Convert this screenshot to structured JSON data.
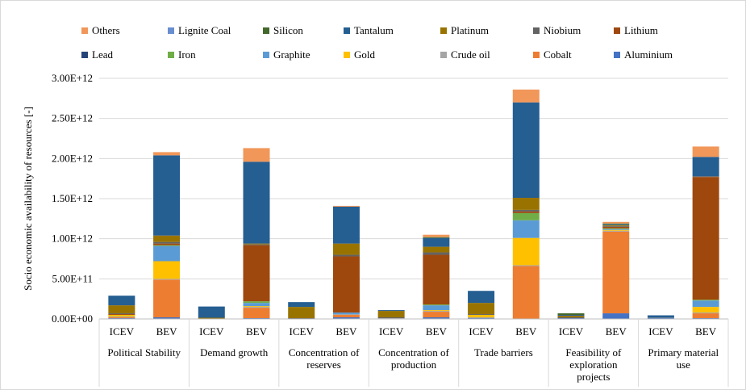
{
  "chart_data": {
    "type": "bar",
    "stacked": true,
    "ylabel": "Socio economic availability of resources [-]",
    "ylim": [
      0,
      3000000000000.0
    ],
    "yticks": [
      "0.00E+00",
      "5.00E+11",
      "1.00E+12",
      "1.50E+12",
      "2.00E+12",
      "2.50E+12",
      "3.00E+12"
    ],
    "grid": true,
    "legend_position": "top",
    "groups": [
      "Political Stability",
      "Demand growth",
      "Concentration of reserves",
      "Concentration of production",
      "Trade barriers",
      "Feasibility of exploration projects",
      "Primary material use"
    ],
    "subcategories": [
      "ICEV",
      "BEV"
    ],
    "legend_order": [
      "Others",
      "Lignite Coal",
      "Silicon",
      "Tantalum",
      "Platinum",
      "Niobium",
      "Lithium",
      "Lead",
      "Iron",
      "Graphite",
      "Gold",
      "Crude oil",
      "Cobalt",
      "Aluminium"
    ],
    "series": [
      {
        "name": "Aluminium",
        "color": "#4472c4",
        "values": [
          [
            10000000000.0,
            20000000000.0
          ],
          [
            0,
            10000000000.0
          ],
          [
            0,
            20000000000.0
          ],
          [
            0,
            20000000000.0
          ],
          [
            10000000000.0,
            0
          ],
          [
            10000000000.0,
            70000000000.0
          ],
          [
            10000000000.0,
            10000000000.0
          ]
        ]
      },
      {
        "name": "Cobalt",
        "color": "#ed7d31",
        "values": [
          [
            10000000000.0,
            470000000000.0
          ],
          [
            0,
            130000000000.0
          ],
          [
            0,
            30000000000.0
          ],
          [
            0,
            70000000000.0
          ],
          [
            0,
            660000000000.0
          ],
          [
            0,
            1020000000000.0
          ],
          [
            0,
            60000000000.0
          ]
        ]
      },
      {
        "name": "Crude oil",
        "color": "#a5a5a5",
        "values": [
          [
            10000000000.0,
            10000000000.0
          ],
          [
            5000000000.0,
            10000000000.0
          ],
          [
            0,
            10000000000.0
          ],
          [
            10000000000.0,
            10000000000.0
          ],
          [
            10000000000.0,
            10000000000.0
          ],
          [
            0,
            10000000000.0
          ],
          [
            5000000000.0,
            10000000000.0
          ]
        ]
      },
      {
        "name": "Gold",
        "color": "#ffc000",
        "values": [
          [
            20000000000.0,
            220000000000.0
          ],
          [
            0,
            10000000000.0
          ],
          [
            0,
            0
          ],
          [
            0,
            10000000000.0
          ],
          [
            30000000000.0,
            340000000000.0
          ],
          [
            0,
            10000000000.0
          ],
          [
            0,
            70000000000.0
          ]
        ]
      },
      {
        "name": "Graphite",
        "color": "#5b9bd5",
        "values": [
          [
            0,
            190000000000.0
          ],
          [
            0,
            40000000000.0
          ],
          [
            0,
            20000000000.0
          ],
          [
            0,
            60000000000.0
          ],
          [
            0,
            220000000000.0
          ],
          [
            0,
            10000000000.0
          ],
          [
            0,
            80000000000.0
          ]
        ]
      },
      {
        "name": "Iron",
        "color": "#70ad47",
        "values": [
          [
            0,
            10000000000.0
          ],
          [
            0,
            20000000000.0
          ],
          [
            0,
            0
          ],
          [
            0,
            10000000000.0
          ],
          [
            0,
            90000000000.0
          ],
          [
            0,
            10000000000.0
          ],
          [
            0,
            10000000000.0
          ]
        ]
      },
      {
        "name": "Lead",
        "color": "#264478",
        "values": [
          [
            0,
            0
          ],
          [
            0,
            0
          ],
          [
            0,
            0
          ],
          [
            0,
            0
          ],
          [
            0,
            0
          ],
          [
            0,
            0
          ],
          [
            0,
            0
          ]
        ]
      },
      {
        "name": "Lithium",
        "color": "#9e480e",
        "values": [
          [
            10000000000.0,
            20000000000.0
          ],
          [
            0,
            700000000000.0
          ],
          [
            0,
            700000000000.0
          ],
          [
            0,
            620000000000.0
          ],
          [
            0,
            20000000000.0
          ],
          [
            0,
            20000000000.0
          ],
          [
            0,
            1530000000000.0
          ]
        ]
      },
      {
        "name": "Niobium",
        "color": "#636363",
        "values": [
          [
            10000000000.0,
            20000000000.0
          ],
          [
            0,
            10000000000.0
          ],
          [
            10000000000.0,
            20000000000.0
          ],
          [
            10000000000.0,
            30000000000.0
          ],
          [
            10000000000.0,
            20000000000.0
          ],
          [
            10000000000.0,
            10000000000.0
          ],
          [
            0,
            10000000000.0
          ]
        ]
      },
      {
        "name": "Platinum",
        "color": "#997300",
        "values": [
          [
            100000000000.0,
            80000000000.0
          ],
          [
            10000000000.0,
            10000000000.0
          ],
          [
            140000000000.0,
            140000000000.0
          ],
          [
            80000000000.0,
            70000000000.0
          ],
          [
            140000000000.0,
            150000000000.0
          ],
          [
            20000000000.0,
            10000000000.0
          ],
          [
            0,
            0
          ]
        ]
      },
      {
        "name": "Tantalum",
        "color": "#255e91",
        "values": [
          [
            120000000000.0,
            1000000000000.0
          ],
          [
            140000000000.0,
            1020000000000.0
          ],
          [
            60000000000.0,
            460000000000.0
          ],
          [
            10000000000.0,
            110000000000.0
          ],
          [
            150000000000.0,
            1190000000000.0
          ],
          [
            10000000000.0,
            10000000000.0
          ],
          [
            30000000000.0,
            240000000000.0
          ]
        ]
      },
      {
        "name": "Silicon",
        "color": "#43682b",
        "values": [
          [
            0,
            0
          ],
          [
            0,
            0
          ],
          [
            0,
            0
          ],
          [
            0,
            10000000000.0
          ],
          [
            0,
            0
          ],
          [
            20000000000.0,
            10000000000.0
          ],
          [
            0,
            0
          ]
        ]
      },
      {
        "name": "Lignite Coal",
        "color": "#698ed0",
        "values": [
          [
            0,
            0
          ],
          [
            0,
            0
          ],
          [
            0,
            0
          ],
          [
            0,
            0
          ],
          [
            0,
            0
          ],
          [
            0,
            0
          ],
          [
            0,
            0
          ]
        ]
      },
      {
        "name": "Others",
        "color": "#f1975a",
        "values": [
          [
            0,
            40000000000.0
          ],
          [
            0,
            170000000000.0
          ],
          [
            0,
            10000000000.0
          ],
          [
            0,
            30000000000.0
          ],
          [
            0,
            160000000000.0
          ],
          [
            0,
            20000000000.0
          ],
          [
            0,
            130000000000.0
          ]
        ]
      }
    ]
  }
}
